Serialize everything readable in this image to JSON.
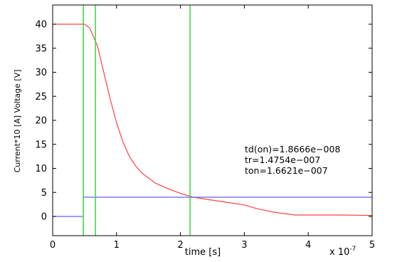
{
  "chart_data": {
    "type": "line",
    "xlabel": "time [s]",
    "ylabel": "Current*10 [A] Voltage [V]",
    "x_exponent_label": "x 10",
    "x_exponent_power": "-7",
    "xlim": [
      0,
      5
    ],
    "ylim": [
      -4,
      44
    ],
    "x_ticks": [
      0,
      1,
      2,
      3,
      4,
      5
    ],
    "x_tick_labels": [
      "0",
      "1",
      "2",
      "3",
      "4",
      "5"
    ],
    "y_ticks": [
      0,
      5,
      10,
      15,
      20,
      25,
      30,
      35,
      40
    ],
    "y_tick_labels": [
      "0",
      "5",
      "10",
      "15",
      "20",
      "25",
      "30",
      "35",
      "40"
    ],
    "grid": false,
    "series": [
      {
        "color": "#ff4040",
        "x": [
          0.0,
          0.3,
          0.48,
          0.5,
          0.58,
          0.7,
          0.8,
          0.9,
          1.0,
          1.1,
          1.2,
          1.3,
          1.4,
          1.5,
          1.6,
          1.8,
          2.0,
          2.2,
          2.5,
          2.8,
          3.0,
          3.2,
          3.5,
          3.8,
          4.0,
          4.5,
          5.0
        ],
        "y": [
          40,
          40,
          40,
          40,
          39.2,
          35.5,
          30.0,
          24.5,
          19.5,
          15.5,
          12.5,
          10.5,
          9.0,
          8.0,
          7.0,
          5.8,
          4.8,
          4.0,
          3.4,
          2.8,
          2.4,
          1.6,
          0.8,
          0.3,
          0.3,
          0.3,
          0.2
        ]
      },
      {
        "color": "#6060ff",
        "x": [
          0.0,
          0.48,
          0.48,
          5.0
        ],
        "y": [
          0.0,
          0.0,
          4.0,
          4.0
        ]
      }
    ],
    "vertical_markers": {
      "color": "#33dd33",
      "x": [
        0.48,
        0.67,
        2.15
      ]
    },
    "annotations": [
      "td(on)=1.8666e−008",
      "tr=1.4754e−007",
      "ton=1.6621e−007"
    ]
  }
}
